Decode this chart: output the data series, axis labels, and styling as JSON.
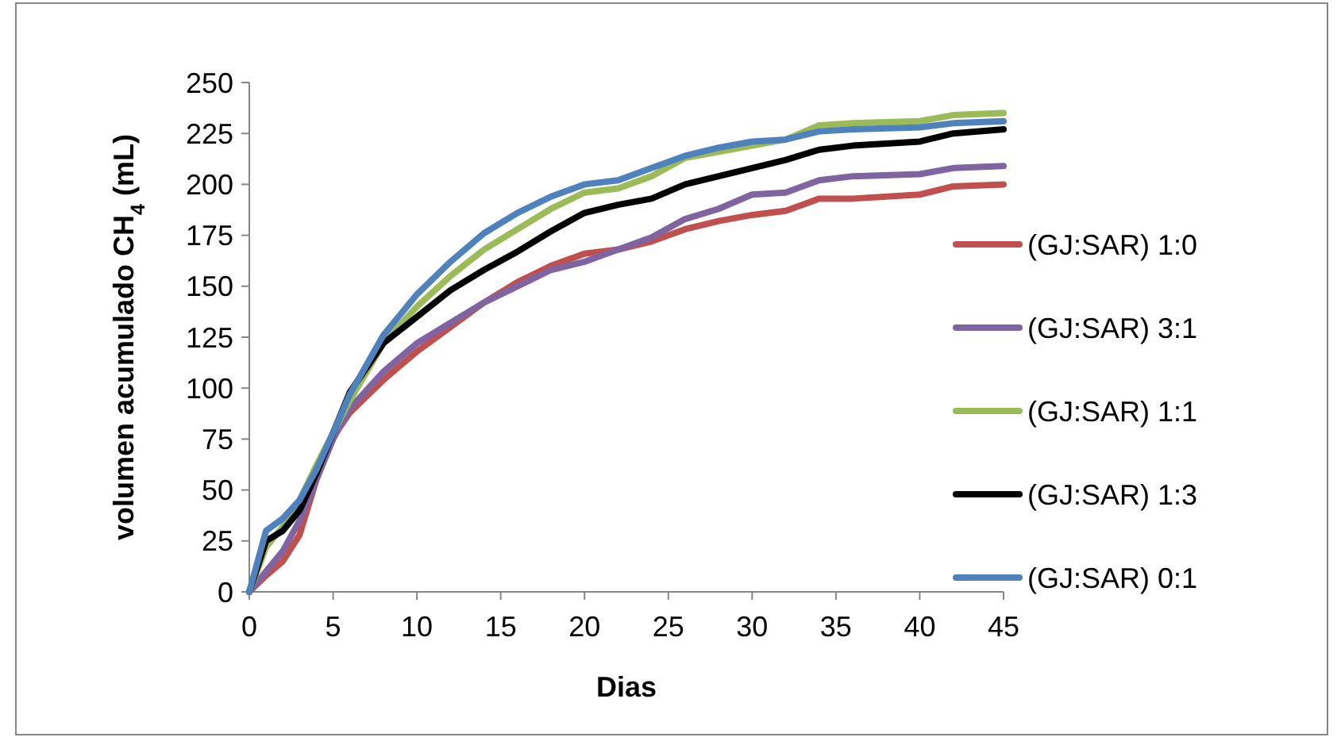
{
  "chart_data": {
    "type": "line",
    "xlabel": "Dias",
    "ylabel": "volumen acumulado CH$_{4}$ (mL)",
    "xlim": [
      0,
      45
    ],
    "xticks": [
      0,
      5,
      10,
      15,
      20,
      25,
      30,
      35,
      40,
      45
    ],
    "ylim": [
      0,
      250
    ],
    "yticks": [
      0,
      25,
      50,
      75,
      100,
      125,
      150,
      175,
      200,
      225,
      250
    ],
    "grid": false,
    "legend": "right",
    "marker": "none",
    "line_style": "solid",
    "x": [
      0,
      1,
      2,
      3,
      4,
      5,
      6,
      8,
      10,
      12,
      14,
      16,
      18,
      20,
      22,
      24,
      26,
      28,
      30,
      32,
      34,
      36,
      40,
      42,
      45
    ],
    "series": [
      {
        "name": "(GJ:SAR) 1:0",
        "color": "#c0504d",
        "values": [
          0,
          8,
          15,
          28,
          55,
          76,
          88,
          104,
          118,
          130,
          142,
          152,
          160,
          166,
          168,
          172,
          178,
          182,
          185,
          187,
          193,
          193,
          195,
          199,
          200
        ]
      },
      {
        "name": "(GJ:SAR) 3:1",
        "color": "#8064a2",
        "values": [
          0,
          10,
          20,
          35,
          55,
          75,
          90,
          108,
          122,
          132,
          142,
          150,
          158,
          162,
          168,
          174,
          183,
          188,
          195,
          196,
          202,
          204,
          205,
          208,
          209
        ]
      },
      {
        "name": "(GJ:SAR) 1:1",
        "color": "#9bbb59",
        "values": [
          0,
          22,
          32,
          45,
          62,
          78,
          94,
          122,
          140,
          155,
          168,
          178,
          188,
          196,
          198,
          204,
          213,
          216,
          219,
          222,
          229,
          230,
          231,
          234,
          235
        ]
      },
      {
        "name": "(GJ:SAR) 1:3",
        "color": "#000000",
        "values": [
          0,
          25,
          30,
          40,
          58,
          78,
          98,
          122,
          135,
          148,
          158,
          167,
          177,
          186,
          190,
          193,
          200,
          204,
          208,
          212,
          217,
          219,
          221,
          225,
          227
        ]
      },
      {
        "name": "(GJ:SAR) 0:1",
        "color": "#4f81bd",
        "values": [
          0,
          30,
          36,
          45,
          60,
          78,
          97,
          126,
          146,
          162,
          176,
          186,
          194,
          200,
          202,
          208,
          214,
          218,
          221,
          222,
          226,
          227,
          228,
          230,
          231
        ]
      }
    ]
  }
}
